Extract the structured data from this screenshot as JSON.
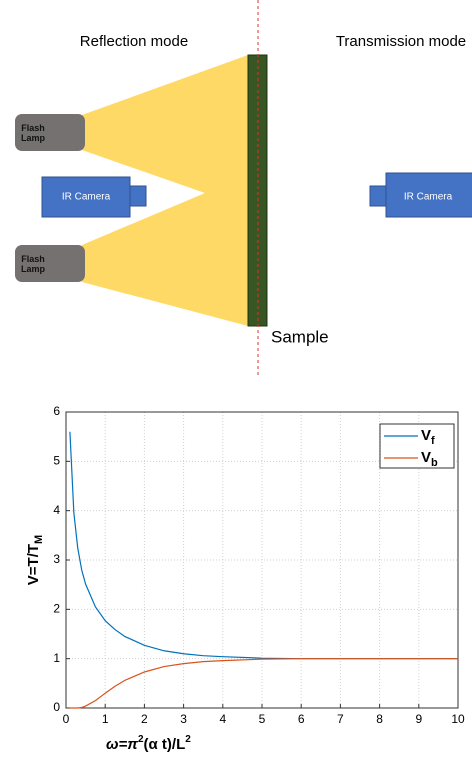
{
  "diagram": {
    "reflection_label": "Reflection mode",
    "transmission_label": "Transmission mode",
    "lamps": [
      "Flash Lamp",
      "Flash Lamp"
    ],
    "cameras": [
      "IR Camera",
      "IR Camera"
    ],
    "sample_label": "Sample"
  },
  "chart_data": {
    "type": "line",
    "xlabel": [
      "ω=π",
      "2",
      "(α t)/L",
      "2"
    ],
    "ylabel": [
      "V=T/T",
      "M"
    ],
    "x": [
      0.1,
      0.2,
      0.3,
      0.4,
      0.5,
      0.75,
      1,
      1.25,
      1.5,
      2,
      2.5,
      3,
      3.5,
      4,
      5,
      6,
      7,
      8,
      9,
      10
    ],
    "series": [
      {
        "name": "V",
        "subscript": "f",
        "color": "#0072bd",
        "values": [
          5.6,
          3.96,
          3.24,
          2.8,
          2.51,
          2.05,
          1.77,
          1.59,
          1.45,
          1.27,
          1.16,
          1.1,
          1.06,
          1.04,
          1.01,
          1,
          1,
          1,
          1,
          1
        ]
      },
      {
        "name": "V",
        "subscript": "b",
        "color": "#d95319",
        "values": [
          0,
          0,
          0,
          0.01,
          0.04,
          0.15,
          0.3,
          0.44,
          0.56,
          0.73,
          0.84,
          0.9,
          0.94,
          0.96,
          0.99,
          1,
          1,
          1,
          1,
          1
        ]
      }
    ],
    "xlim": [
      0,
      10
    ],
    "xticks": [
      0,
      1,
      2,
      3,
      4,
      5,
      6,
      7,
      8,
      9,
      10
    ],
    "ylim": [
      0,
      6
    ],
    "yticks": [
      0,
      1,
      2,
      3,
      4,
      5,
      6
    ],
    "grid": true,
    "legend": "top-right"
  }
}
